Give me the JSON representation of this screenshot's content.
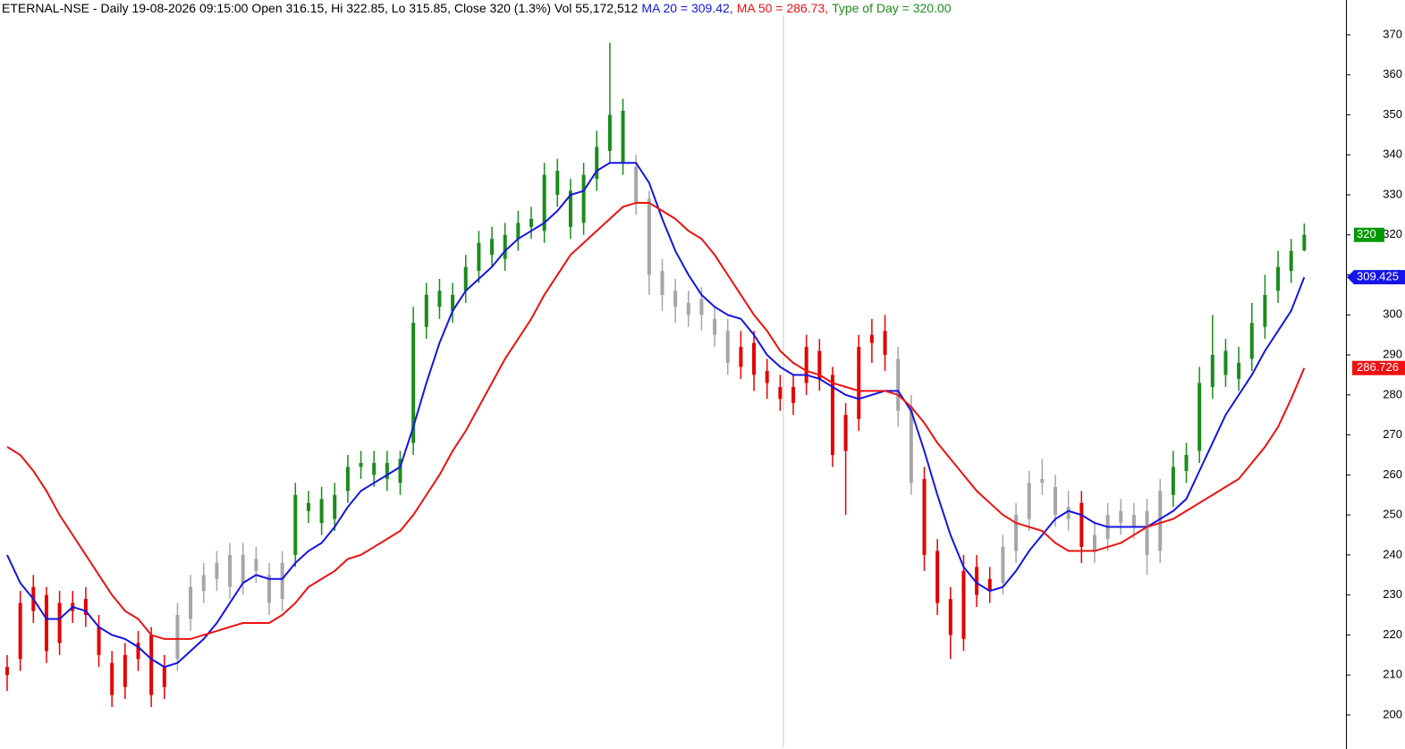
{
  "chart_data": {
    "type": "candlestick",
    "title": [
      {
        "text": "ETERNAL-NSE - Daily 19-08-2026 09:15:00 Open 316.15, Hi 322.85, Lo 315.85, Close 320 (1.3%) Vol 55,172,512",
        "color": "#000000"
      },
      {
        "text": "MA 20 = 309.42,",
        "color": "#1414e6"
      },
      {
        "text": "MA 50 = 286.73,",
        "color": "#ee1111"
      },
      {
        "text": "Type of Day = 320.00",
        "color": "#1a8c1a"
      }
    ],
    "open": [
      212,
      214,
      226,
      230,
      218,
      226,
      229,
      222,
      213,
      207,
      214,
      220,
      207,
      214,
      224,
      231,
      234,
      240,
      233,
      239,
      235,
      229,
      240,
      251,
      254,
      249,
      256,
      263,
      263,
      259,
      264,
      268,
      297,
      306,
      301,
      306,
      311,
      319,
      314,
      319,
      324,
      321,
      336,
      331,
      323,
      334,
      341,
      351,
      337,
      329,
      311,
      306,
      300,
      304,
      299,
      296,
      287,
      293,
      286,
      282,
      278,
      283,
      291,
      285,
      266,
      274,
      293,
      296,
      289,
      277,
      259,
      241,
      229,
      219,
      237,
      231,
      233,
      241,
      249,
      259,
      257,
      249,
      253,
      241,
      244,
      251,
      247,
      251,
      241,
      255,
      261,
      266,
      282,
      291,
      284,
      289,
      297,
      306,
      311,
      316.15
    ],
    "high": [
      215,
      231,
      235,
      232,
      231,
      231,
      232,
      225,
      216,
      218,
      221,
      222,
      215,
      228,
      235,
      238,
      241,
      243,
      243,
      242,
      238,
      241,
      258,
      256,
      257,
      258,
      265,
      266,
      266,
      266,
      266,
      302,
      308,
      309,
      308,
      315,
      321,
      322,
      323,
      326,
      327,
      338,
      339,
      334,
      338,
      346,
      368,
      354,
      340,
      331,
      314,
      309,
      306,
      307,
      302,
      299,
      296,
      296,
      289,
      285,
      285,
      295,
      294,
      287,
      278,
      295,
      299,
      300,
      292,
      280,
      262,
      244,
      232,
      240,
      240,
      237,
      245,
      253,
      261,
      264,
      260,
      256,
      256,
      248,
      253,
      254,
      253,
      254,
      259,
      266,
      268,
      287,
      300,
      294,
      292,
      303,
      310,
      316,
      319,
      322.85
    ],
    "low": [
      206,
      211,
      223,
      213,
      215,
      223,
      222,
      212,
      202,
      204,
      211,
      202,
      204,
      211,
      221,
      228,
      231,
      229,
      230,
      233,
      225,
      226,
      237,
      248,
      245,
      246,
      253,
      259,
      257,
      256,
      255,
      265,
      294,
      299,
      298,
      303,
      308,
      312,
      311,
      316,
      319,
      318,
      327,
      319,
      320,
      331,
      338,
      335,
      325,
      305,
      301,
      298,
      297,
      296,
      292,
      285,
      284,
      281,
      279,
      276,
      275,
      280,
      281,
      262,
      250,
      271,
      288,
      286,
      272,
      255,
      236,
      225,
      214,
      216,
      227,
      228,
      230,
      238,
      246,
      255,
      247,
      246,
      238,
      238,
      241,
      245,
      244,
      235,
      238,
      252,
      258,
      263,
      279,
      282,
      281,
      286,
      294,
      303,
      308,
      315.85
    ],
    "close": [
      210,
      228,
      232,
      216,
      228,
      228,
      225,
      215,
      205,
      215,
      218,
      205,
      212,
      225,
      232,
      235,
      238,
      232,
      240,
      236,
      228,
      238,
      255,
      253,
      248,
      255,
      262,
      262,
      260,
      263,
      258,
      298,
      305,
      302,
      305,
      312,
      318,
      315,
      320,
      323,
      322,
      335,
      330,
      322,
      335,
      342,
      350,
      338,
      328,
      310,
      305,
      302,
      303,
      300,
      295,
      288,
      292,
      285,
      283,
      279,
      282,
      292,
      284,
      265,
      275,
      292,
      295,
      290,
      276,
      258,
      240,
      228,
      220,
      236,
      230,
      234,
      242,
      250,
      258,
      258,
      250,
      252,
      242,
      245,
      250,
      248,
      250,
      240,
      256,
      262,
      265,
      283,
      290,
      285,
      288,
      298,
      305,
      312,
      316,
      320
    ],
    "candle_colors": [
      "#e60000",
      "#e60000",
      "#e60000",
      "#e60000",
      "#e60000",
      "#e60000",
      "#e60000",
      "#e60000",
      "#e60000",
      "#e60000",
      "#e60000",
      "#e60000",
      "#e60000",
      "#a6a6a6",
      "#a6a6a6",
      "#a6a6a6",
      "#a6a6a6",
      "#a6a6a6",
      "#a6a6a6",
      "#a6a6a6",
      "#a6a6a6",
      "#a6a6a6",
      "#1a8c1a",
      "#1a8c1a",
      "#1a8c1a",
      "#1a8c1a",
      "#1a8c1a",
      "#1a8c1a",
      "#1a8c1a",
      "#1a8c1a",
      "#1a8c1a",
      "#1a8c1a",
      "#1a8c1a",
      "#1a8c1a",
      "#1a8c1a",
      "#1a8c1a",
      "#1a8c1a",
      "#1a8c1a",
      "#1a8c1a",
      "#1a8c1a",
      "#1a8c1a",
      "#1a8c1a",
      "#1a8c1a",
      "#1a8c1a",
      "#1a8c1a",
      "#1a8c1a",
      "#1a8c1a",
      "#1a8c1a",
      "#a6a6a6",
      "#a6a6a6",
      "#a6a6a6",
      "#a6a6a6",
      "#a6a6a6",
      "#a6a6a6",
      "#a6a6a6",
      "#a6a6a6",
      "#e60000",
      "#e60000",
      "#e60000",
      "#e60000",
      "#e60000",
      "#e60000",
      "#e60000",
      "#e60000",
      "#e60000",
      "#e60000",
      "#e60000",
      "#e60000",
      "#a6a6a6",
      "#a6a6a6",
      "#e60000",
      "#e60000",
      "#e60000",
      "#e60000",
      "#e60000",
      "#e60000",
      "#a6a6a6",
      "#a6a6a6",
      "#a6a6a6",
      "#a6a6a6",
      "#a6a6a6",
      "#a6a6a6",
      "#e60000",
      "#a6a6a6",
      "#a6a6a6",
      "#a6a6a6",
      "#a6a6a6",
      "#a6a6a6",
      "#a6a6a6",
      "#1a8c1a",
      "#1a8c1a",
      "#1a8c1a",
      "#1a8c1a",
      "#1a8c1a",
      "#1a8c1a",
      "#1a8c1a",
      "#1a8c1a",
      "#1a8c1a",
      "#1a8c1a",
      "#1a8c1a"
    ],
    "last_label_color": "#009900",
    "series": [
      {
        "color": "#1414e6",
        "values": [
          240,
          233,
          229,
          224,
          224,
          227,
          226,
          222,
          220,
          219,
          217,
          214,
          212,
          213,
          216,
          219,
          223,
          228,
          233,
          235,
          234,
          234,
          238,
          241,
          243,
          247,
          252,
          256,
          258,
          260,
          262,
          272,
          283,
          293,
          301,
          306,
          309,
          312,
          316,
          319,
          321,
          323,
          326,
          330,
          331,
          336,
          338,
          338,
          338,
          333,
          324,
          316,
          310,
          305,
          302,
          300,
          299,
          295,
          290,
          287,
          285,
          285,
          284,
          282,
          280,
          279,
          280,
          281,
          281,
          276,
          266,
          255,
          245,
          237,
          233,
          231,
          232,
          236,
          241,
          245,
          249,
          251,
          250,
          248,
          247,
          247,
          247,
          247,
          249,
          251,
          254,
          261,
          268,
          275,
          280,
          285,
          291,
          296,
          301,
          309.425
        ]
      },
      {
        "color": "#ee1111",
        "values": [
          267,
          265,
          261,
          256,
          250,
          245,
          240,
          235,
          230,
          226,
          224,
          220,
          219,
          219,
          219,
          220,
          221,
          222,
          223,
          223,
          223,
          225,
          228,
          232,
          234,
          236,
          239,
          240,
          242,
          244,
          246,
          250,
          255,
          260,
          266,
          271,
          277,
          283,
          289,
          294,
          299,
          305,
          310,
          315,
          318,
          321,
          324,
          327,
          328,
          328,
          326,
          324,
          321,
          319,
          315,
          310,
          305,
          300,
          296,
          291,
          288,
          286,
          285,
          283,
          282,
          281,
          281,
          281,
          280,
          277,
          273,
          268,
          264,
          260,
          256,
          253,
          250,
          248,
          247,
          246,
          243,
          241,
          241,
          241,
          242,
          243,
          245,
          247,
          248,
          249,
          251,
          253,
          255,
          257,
          259,
          263,
          267,
          272,
          279,
          286.726
        ]
      }
    ],
    "ylim": [
      191.5,
      378.7
    ],
    "yticks": [
      200,
      210,
      220,
      230,
      240,
      250,
      260,
      270,
      280,
      290,
      300,
      310,
      320,
      330,
      340,
      350,
      360,
      370
    ]
  }
}
